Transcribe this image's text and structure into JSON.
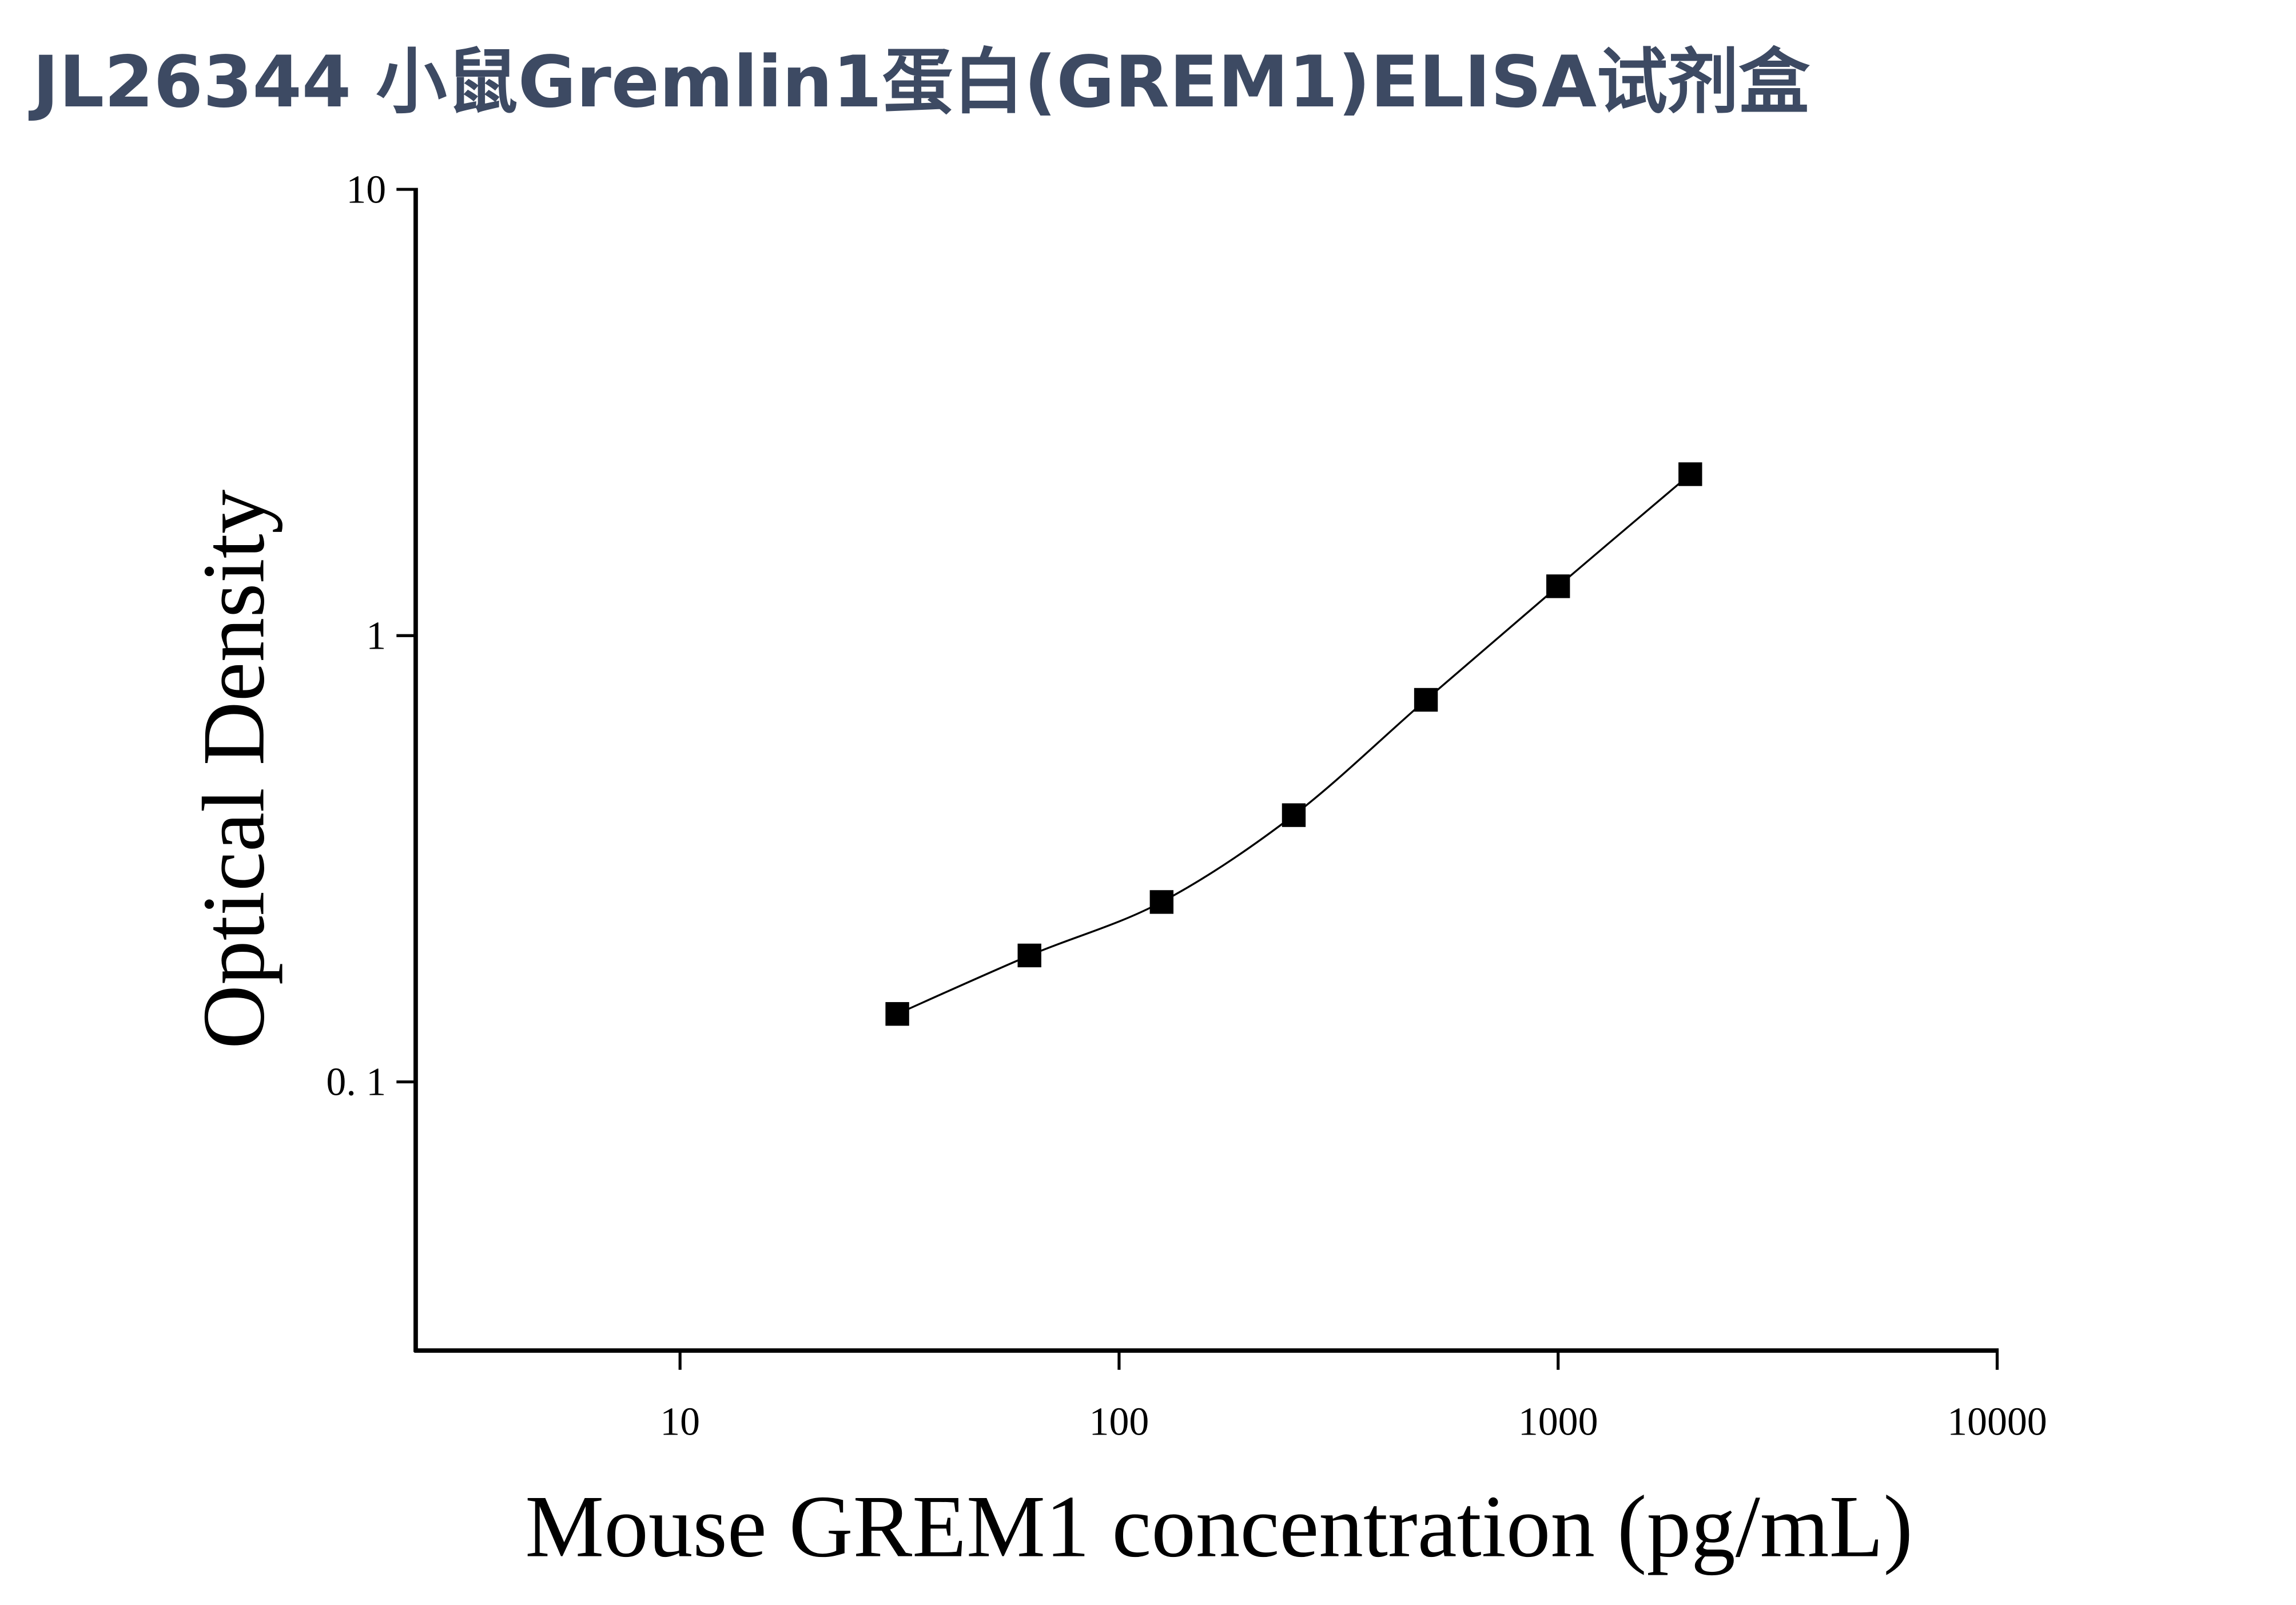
{
  "chart_data": {
    "type": "scatter",
    "title": "JL26344 小鼠Gremlin1蛋白(GREM1)ELISA试剂盒",
    "x_label": "Mouse GREM1 concentration (pg/mL)",
    "y_label": "Optical Density",
    "x": [
      31.25,
      62.5,
      125,
      250,
      500,
      1000,
      2000
    ],
    "values": [
      0.142,
      0.192,
      0.253,
      0.396,
      0.718,
      1.29,
      2.3
    ],
    "color": "#000000",
    "fit_line": true,
    "xlog": true,
    "ylog": true,
    "xlim": [
      2.5,
      10000
    ],
    "xticks": [
      10,
      100,
      1000,
      10000
    ],
    "ylim": [
      0.025,
      10
    ],
    "yticks": [
      {
        "value": 0.1,
        "label": "0. 1"
      },
      1,
      10
    ],
    "grid": false
  }
}
